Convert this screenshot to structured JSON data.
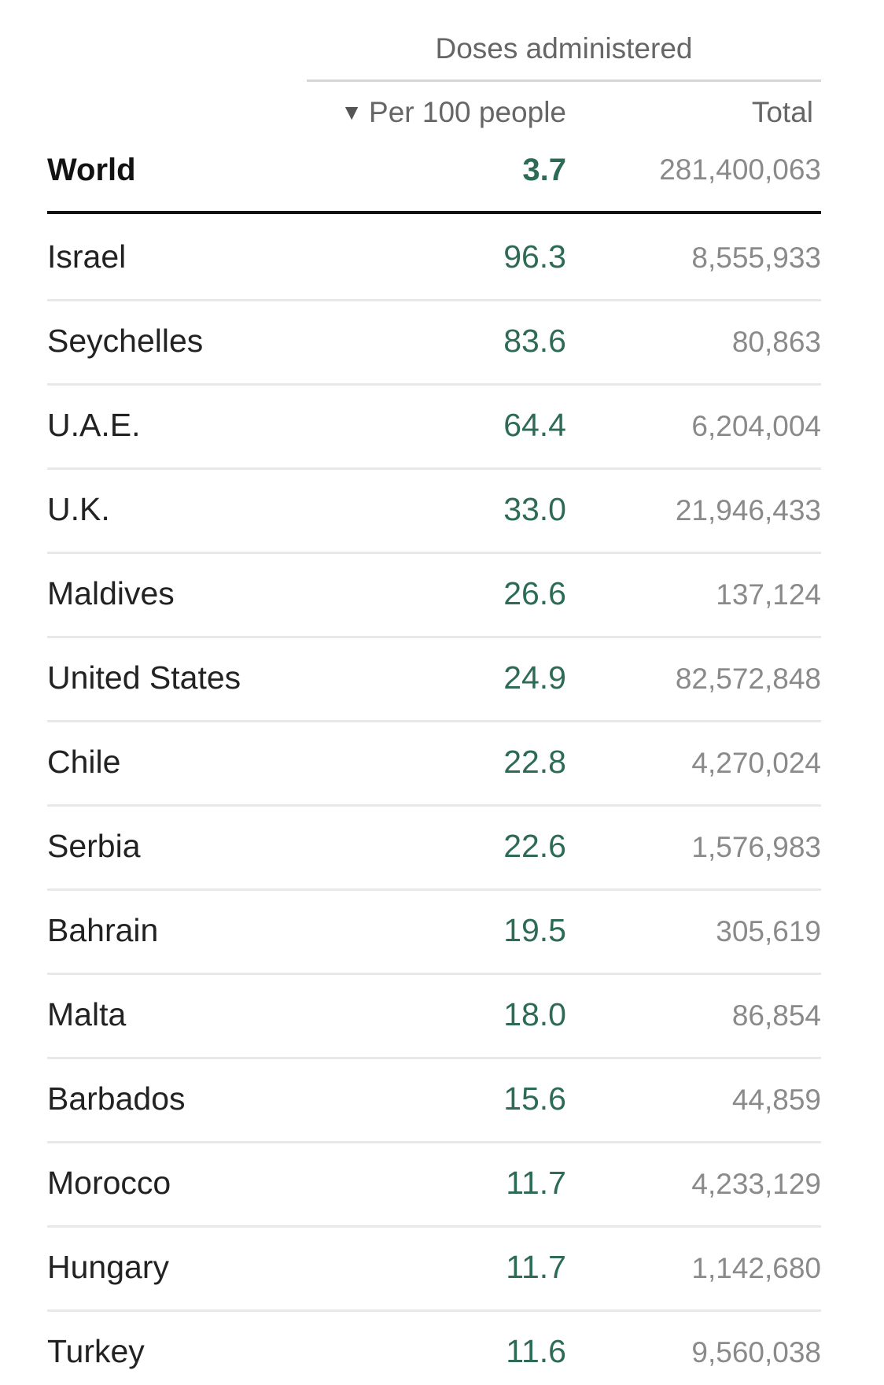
{
  "chart_data": {
    "type": "table",
    "group_header": "Doses administered",
    "columns": [
      {
        "label": "Per 100 people",
        "sorted": "descending"
      },
      {
        "label": "Total"
      }
    ],
    "sort_indicator": "▼",
    "world": {
      "name": "World",
      "per_100": "3.7",
      "total": "281,400,063"
    },
    "rows": [
      {
        "name": "Israel",
        "per_100": "96.3",
        "total": "8,555,933"
      },
      {
        "name": "Seychelles",
        "per_100": "83.6",
        "total": "80,863"
      },
      {
        "name": "U.A.E.",
        "per_100": "64.4",
        "total": "6,204,004"
      },
      {
        "name": "U.K.",
        "per_100": "33.0",
        "total": "21,946,433"
      },
      {
        "name": "Maldives",
        "per_100": "26.6",
        "total": "137,124"
      },
      {
        "name": "United States",
        "per_100": "24.9",
        "total": "82,572,848"
      },
      {
        "name": "Chile",
        "per_100": "22.8",
        "total": "4,270,024"
      },
      {
        "name": "Serbia",
        "per_100": "22.6",
        "total": "1,576,983"
      },
      {
        "name": "Bahrain",
        "per_100": "19.5",
        "total": "305,619"
      },
      {
        "name": "Malta",
        "per_100": "18.0",
        "total": "86,854"
      },
      {
        "name": "Barbados",
        "per_100": "15.6",
        "total": "44,859"
      },
      {
        "name": "Morocco",
        "per_100": "11.7",
        "total": "4,233,129"
      },
      {
        "name": "Hungary",
        "per_100": "11.7",
        "total": "1,142,680"
      },
      {
        "name": "Turkey",
        "per_100": "11.6",
        "total": "9,560,038"
      }
    ],
    "colors": {
      "value": "#2d6b55",
      "total": "#8a8a8a",
      "header": "#666666"
    }
  }
}
